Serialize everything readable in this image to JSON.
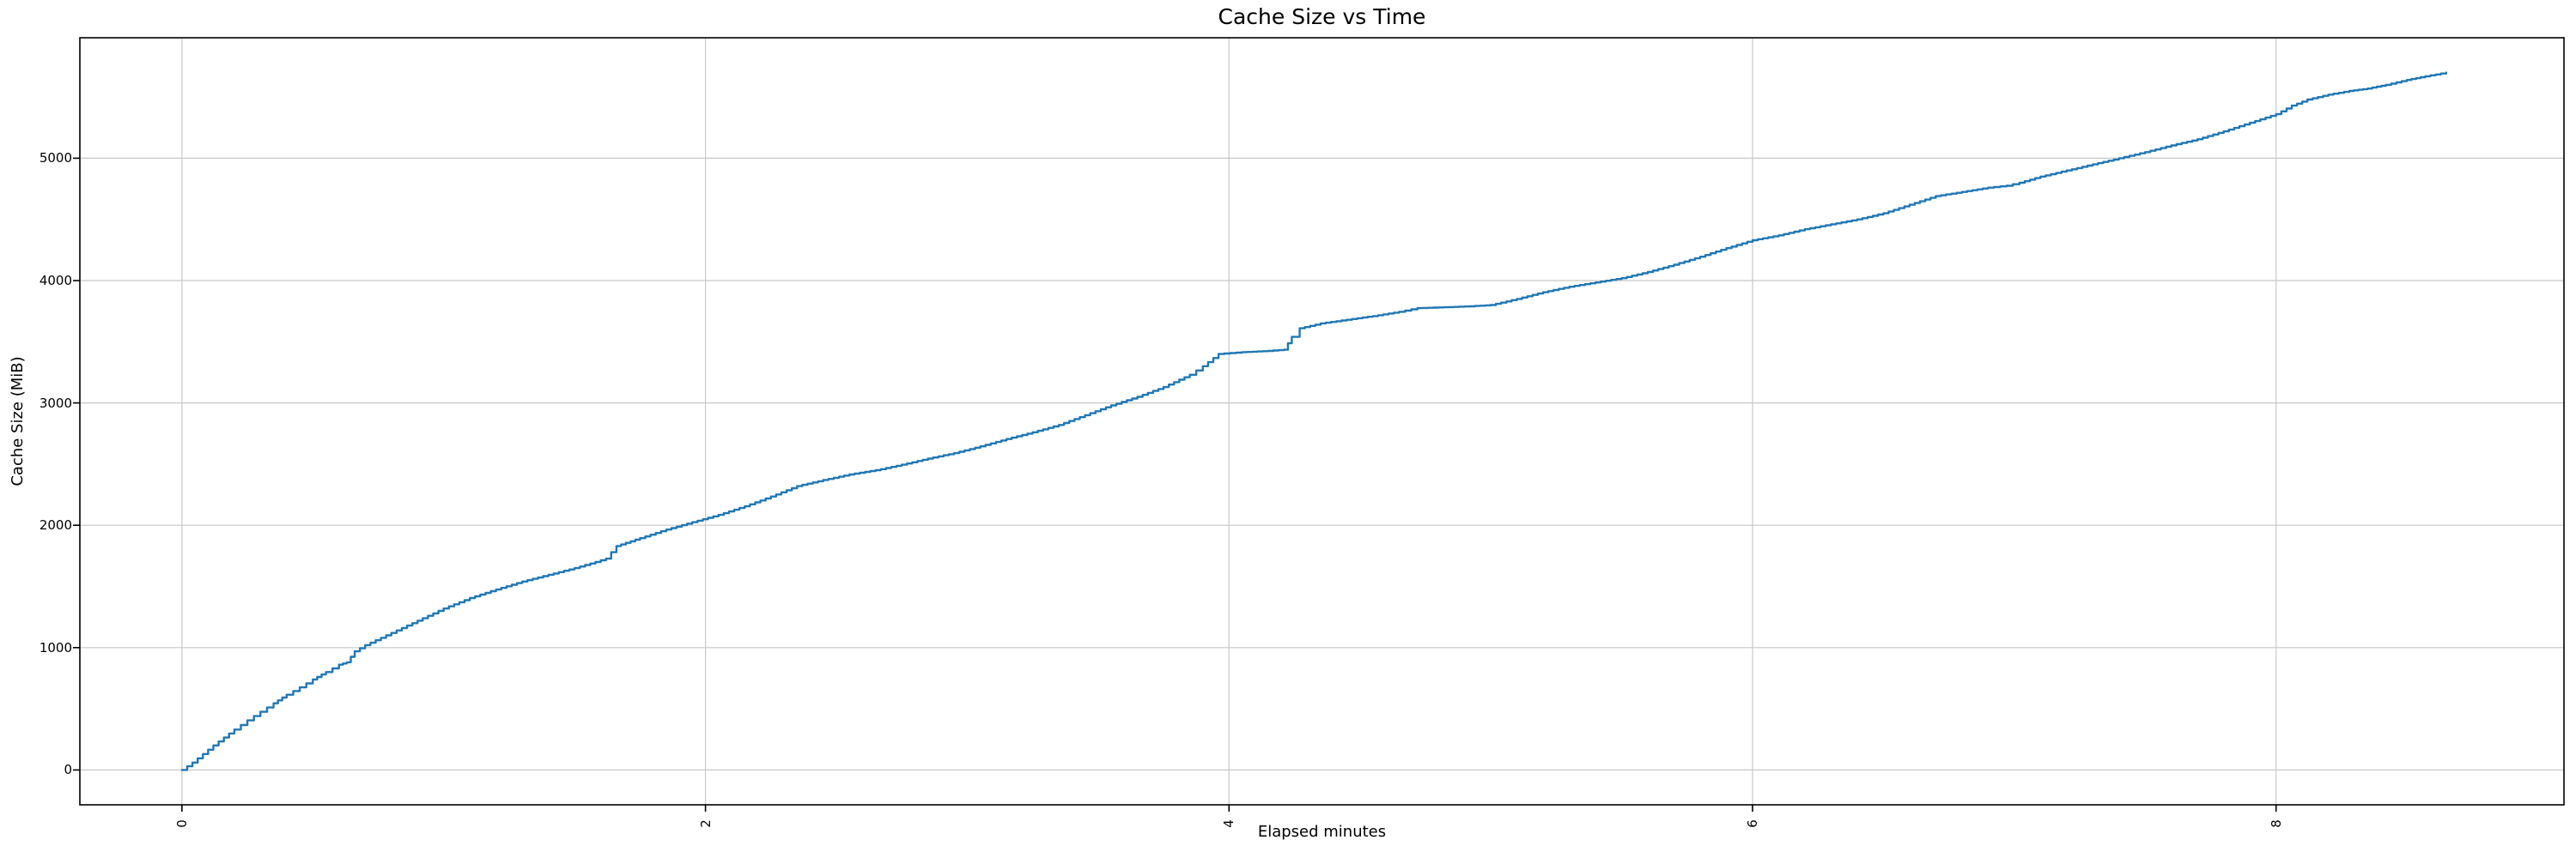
{
  "figure": {
    "background_color": "#ffffff",
    "text_color": "#000000"
  },
  "chart_data": {
    "type": "line",
    "title": "Cache Size vs Time",
    "xlabel": "Elapsed minutes",
    "ylabel": "Cache Size (MiB)",
    "x_ticks": [
      0,
      2,
      4,
      6,
      8
    ],
    "y_ticks": [
      0,
      1000,
      2000,
      3000,
      4000,
      5000
    ],
    "xlim": [
      -0.39,
      9.1
    ],
    "ylim": [
      -285,
      5985
    ],
    "grid": true,
    "legend": "none",
    "x_tick_rotation_deg": 90,
    "line_color": "#1f77b4",
    "grid_color": "#c8c8c8",
    "spine_color": "#000000",
    "series": [
      {
        "name": "Cache Size",
        "style": "staircase",
        "points": [
          [
            0.0,
            0
          ],
          [
            0.04,
            60
          ],
          [
            0.08,
            130
          ],
          [
            0.12,
            200
          ],
          [
            0.16,
            265
          ],
          [
            0.2,
            330
          ],
          [
            0.25,
            405
          ],
          [
            0.3,
            475
          ],
          [
            0.35,
            545
          ],
          [
            0.4,
            615
          ],
          [
            0.45,
            675
          ],
          [
            0.5,
            740
          ],
          [
            0.55,
            800
          ],
          [
            0.6,
            860
          ],
          [
            0.63,
            880
          ],
          [
            0.66,
            970
          ],
          [
            0.7,
            1020
          ],
          [
            0.8,
            1120
          ],
          [
            0.9,
            1220
          ],
          [
            1.0,
            1320
          ],
          [
            1.1,
            1405
          ],
          [
            1.2,
            1475
          ],
          [
            1.3,
            1540
          ],
          [
            1.4,
            1595
          ],
          [
            1.5,
            1650
          ],
          [
            1.58,
            1700
          ],
          [
            1.62,
            1727
          ],
          [
            1.64,
            1780
          ],
          [
            1.66,
            1830
          ],
          [
            1.75,
            1895
          ],
          [
            1.85,
            1965
          ],
          [
            1.95,
            2025
          ],
          [
            2.05,
            2085
          ],
          [
            2.15,
            2155
          ],
          [
            2.25,
            2235
          ],
          [
            2.35,
            2320
          ],
          [
            2.45,
            2370
          ],
          [
            2.55,
            2415
          ],
          [
            2.65,
            2450
          ],
          [
            2.75,
            2495
          ],
          [
            2.85,
            2545
          ],
          [
            2.95,
            2590
          ],
          [
            3.05,
            2645
          ],
          [
            3.15,
            2705
          ],
          [
            3.25,
            2760
          ],
          [
            3.35,
            2820
          ],
          [
            3.45,
            2900
          ],
          [
            3.55,
            2980
          ],
          [
            3.65,
            3050
          ],
          [
            3.75,
            3130
          ],
          [
            3.85,
            3230
          ],
          [
            3.9,
            3300
          ],
          [
            3.96,
            3400
          ],
          [
            4.05,
            3415
          ],
          [
            4.15,
            3425
          ],
          [
            4.21,
            3435
          ],
          [
            4.24,
            3540
          ],
          [
            4.27,
            3610
          ],
          [
            4.35,
            3650
          ],
          [
            4.45,
            3680
          ],
          [
            4.55,
            3710
          ],
          [
            4.65,
            3745
          ],
          [
            4.72,
            3775
          ],
          [
            4.82,
            3782
          ],
          [
            4.92,
            3790
          ],
          [
            5.0,
            3800
          ],
          [
            5.1,
            3850
          ],
          [
            5.2,
            3905
          ],
          [
            5.3,
            3950
          ],
          [
            5.4,
            3985
          ],
          [
            5.5,
            4020
          ],
          [
            5.6,
            4070
          ],
          [
            5.7,
            4130
          ],
          [
            5.8,
            4195
          ],
          [
            5.9,
            4265
          ],
          [
            6.0,
            4330
          ],
          [
            6.1,
            4370
          ],
          [
            6.2,
            4420
          ],
          [
            6.3,
            4460
          ],
          [
            6.4,
            4500
          ],
          [
            6.5,
            4550
          ],
          [
            6.6,
            4620
          ],
          [
            6.7,
            4690
          ],
          [
            6.8,
            4725
          ],
          [
            6.9,
            4760
          ],
          [
            6.97,
            4775
          ],
          [
            7.02,
            4800
          ],
          [
            7.1,
            4850
          ],
          [
            7.2,
            4900
          ],
          [
            7.3,
            4950
          ],
          [
            7.4,
            5000
          ],
          [
            7.5,
            5050
          ],
          [
            7.6,
            5105
          ],
          [
            7.7,
            5155
          ],
          [
            7.8,
            5220
          ],
          [
            7.9,
            5290
          ],
          [
            8.0,
            5360
          ],
          [
            8.06,
            5430
          ],
          [
            8.12,
            5480
          ],
          [
            8.2,
            5520
          ],
          [
            8.28,
            5550
          ],
          [
            8.35,
            5570
          ],
          [
            8.42,
            5600
          ],
          [
            8.5,
            5640
          ],
          [
            8.57,
            5670
          ],
          [
            8.65,
            5700
          ]
        ]
      }
    ]
  }
}
